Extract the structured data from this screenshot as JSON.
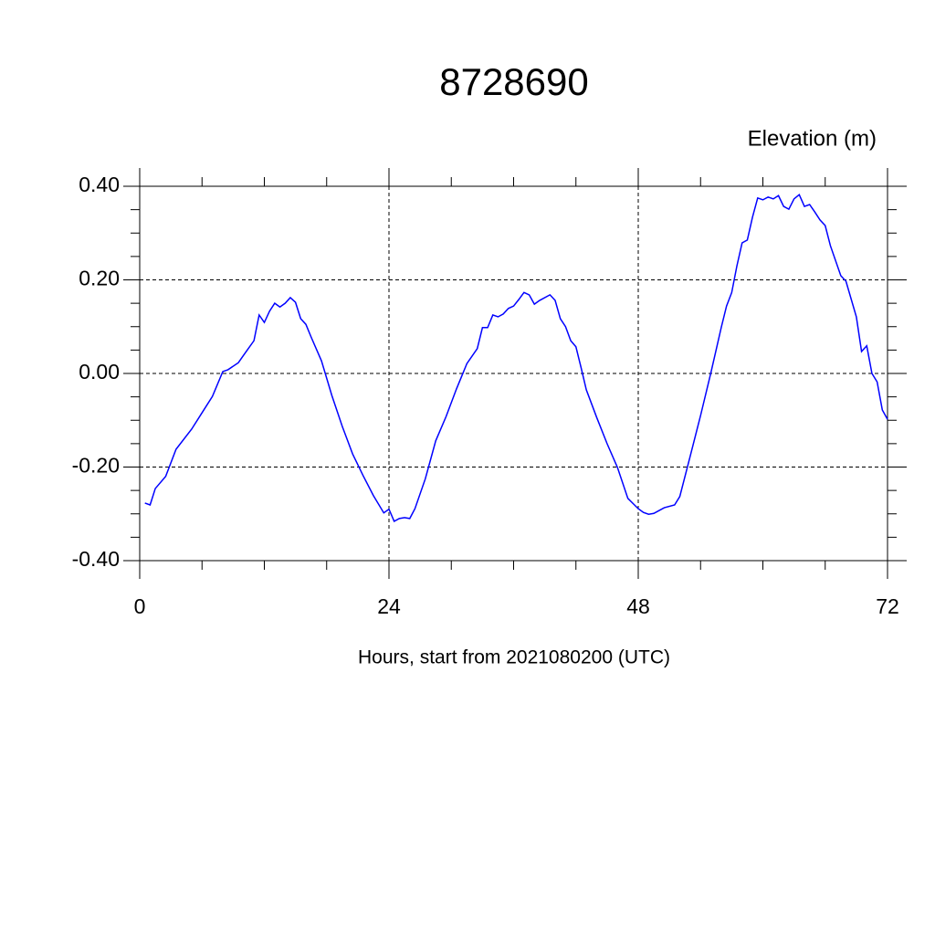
{
  "chart_data": {
    "type": "line",
    "title": "8728690",
    "ylabel": "Elevation (m)",
    "xlabel": "Hours, start from 2021080200 (UTC)",
    "x": [
      0.5,
      1,
      1.5,
      2.5,
      3.5,
      5,
      6,
      7,
      8,
      8.5,
      9.5,
      10,
      11,
      11.5,
      12,
      12.5,
      13,
      13.5,
      14,
      14.5,
      15,
      15.5,
      16,
      16.5,
      17.5,
      18.5,
      19.5,
      20.5,
      21.5,
      22.5,
      23.5,
      24,
      24.5,
      25,
      25.5,
      26,
      26.5,
      27.5,
      28.5,
      29.5,
      30.5,
      31.5,
      32.5,
      33,
      33.5,
      34,
      34.5,
      35,
      35.5,
      36,
      36.5,
      37,
      37.5,
      38,
      38.5,
      39.5,
      40,
      40.5,
      41,
      41.5,
      42,
      42.5,
      43,
      44,
      45,
      46,
      47,
      48,
      48.5,
      49,
      49.5,
      50,
      50.5,
      51.5,
      52,
      53,
      54,
      55,
      56,
      56.5,
      57,
      57.5,
      58,
      58.5,
      59,
      59.5,
      60,
      60.5,
      61,
      61.5,
      62,
      62.5,
      63,
      63.5,
      64,
      64.5,
      65,
      65.5,
      66,
      66.5,
      67.5,
      68,
      69,
      69.5,
      70,
      70.5,
      71,
      71.5,
      72
    ],
    "series": [
      {
        "color": "#0000ff",
        "values": [
          -0.277,
          -0.281,
          -0.246,
          -0.22,
          -0.162,
          -0.119,
          -0.084,
          -0.049,
          0.004,
          0.008,
          0.023,
          0.039,
          0.07,
          0.125,
          0.109,
          0.133,
          0.15,
          0.142,
          0.15,
          0.162,
          0.152,
          0.117,
          0.105,
          0.078,
          0.027,
          -0.047,
          -0.113,
          -0.172,
          -0.218,
          -0.261,
          -0.298,
          -0.29,
          -0.316,
          -0.31,
          -0.308,
          -0.31,
          -0.289,
          -0.225,
          -0.144,
          -0.092,
          -0.033,
          0.021,
          0.053,
          0.098,
          0.098,
          0.125,
          0.121,
          0.127,
          0.139,
          0.144,
          0.158,
          0.173,
          0.168,
          0.148,
          0.156,
          0.168,
          0.156,
          0.117,
          0.1,
          0.07,
          0.057,
          0.012,
          -0.035,
          -0.094,
          -0.15,
          -0.201,
          -0.267,
          -0.289,
          -0.297,
          -0.301,
          -0.299,
          -0.293,
          -0.287,
          -0.281,
          -0.263,
          -0.177,
          -0.09,
          0.002,
          0.099,
          0.144,
          0.173,
          0.23,
          0.279,
          0.285,
          0.334,
          0.375,
          0.371,
          0.377,
          0.373,
          0.38,
          0.357,
          0.351,
          0.373,
          0.382,
          0.357,
          0.361,
          0.345,
          0.328,
          0.316,
          0.273,
          0.209,
          0.197,
          0.121,
          0.047,
          0.059,
          0.0,
          -0.018,
          -0.078,
          -0.098
        ]
      }
    ],
    "xlim": [
      0,
      72
    ],
    "xticks": [
      0,
      24,
      48,
      72
    ],
    "ylim": [
      -0.4,
      0.4
    ],
    "yticks": [
      {
        "value": -0.4,
        "label": "-0.40"
      },
      {
        "value": -0.2,
        "label": "-0.20"
      },
      {
        "value": 0,
        "label": "0.00"
      },
      {
        "value": 0.2,
        "label": "0.20"
      },
      {
        "value": 0.4,
        "label": "0.40"
      }
    ],
    "grid": true
  }
}
